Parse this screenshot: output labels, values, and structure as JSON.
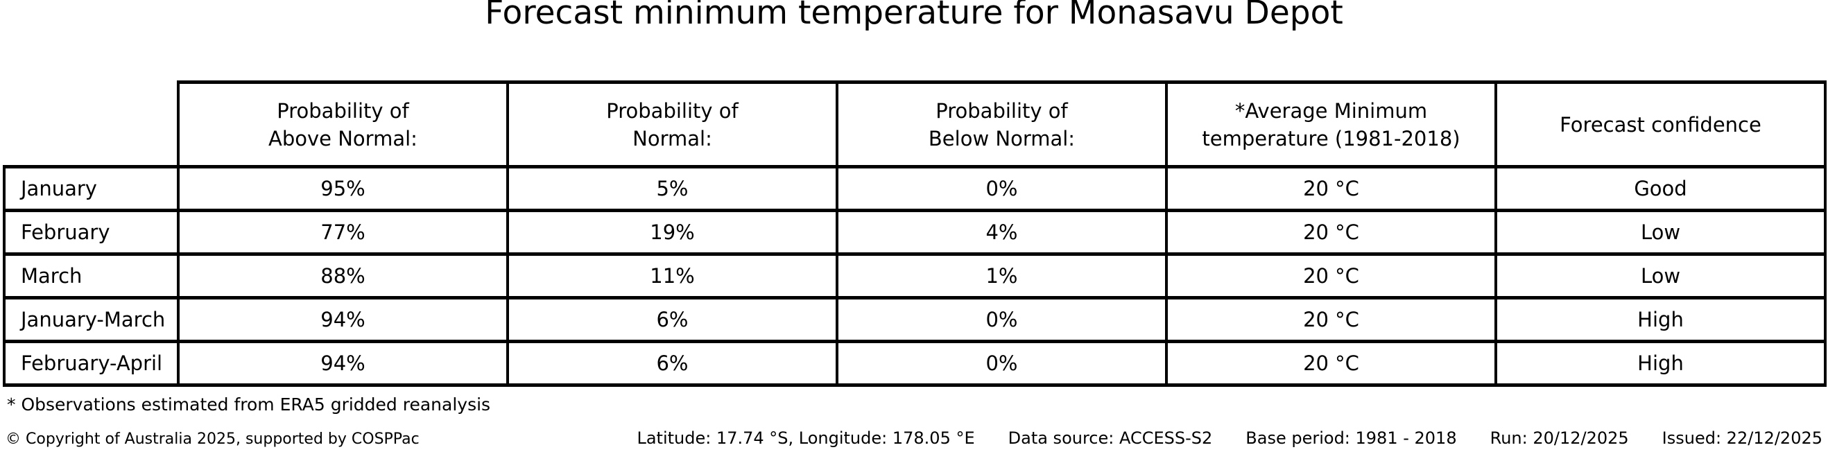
{
  "chart_data": {
    "type": "table",
    "title": "Forecast minimum temperature for Monasavu Depot",
    "columns": [
      "Probability of\nAbove Normal:",
      "Probability of\nNormal:",
      "Probability of\nBelow Normal:",
      "*Average Minimum\ntemperature (1981-2018)",
      "Forecast confidence"
    ],
    "rows": [
      {
        "label": "January",
        "values": [
          "95%",
          "5%",
          "0%",
          "20 °C",
          "Good"
        ]
      },
      {
        "label": "February",
        "values": [
          "77%",
          "19%",
          "4%",
          "20 °C",
          "Low"
        ]
      },
      {
        "label": "March",
        "values": [
          "88%",
          "11%",
          "1%",
          "20 °C",
          "Low"
        ]
      },
      {
        "label": "January-March",
        "values": [
          "94%",
          "6%",
          "0%",
          "20 °C",
          "High"
        ]
      },
      {
        "label": "February-April",
        "values": [
          "94%",
          "6%",
          "0%",
          "20 °C",
          "High"
        ]
      }
    ],
    "footnote": "* Observations estimated from ERA5 gridded reanalysis"
  },
  "footer": {
    "copyright": "© Copyright of Australia 2025, supported by COSPPac",
    "location": "Latitude: 17.74 °S, Longitude: 178.05 °E",
    "data_source": "Data source: ACCESS-S2",
    "base_period": "Base period: 1981 - 2018",
    "run": "Run: 20/12/2025",
    "issued": "Issued: 22/12/2025"
  },
  "colors": {
    "text": "#000000",
    "background": "#ffffff",
    "border": "#000000"
  }
}
